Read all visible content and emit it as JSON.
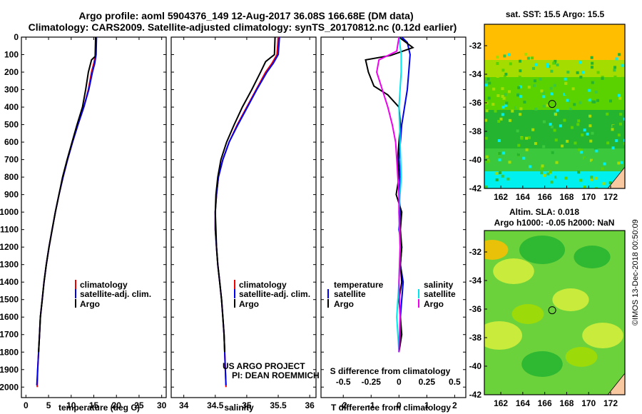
{
  "title": {
    "line1": "Argo profile: aoml 5904376_149 12-Aug-2017 36.08S 166.68E (DM data)",
    "line2": "Climatology: CARS2009. Satellite-adjusted climatology: synTS_20170812.nc (0.12d earlier)"
  },
  "credit": "©IMOS 13-Dec-2018 00:50:09",
  "project": {
    "line1": "US ARGO PROJECT",
    "line2": "PI: DEAN ROEMMICH"
  },
  "colors": {
    "climatology": "#ee0000",
    "satellite": "#0000ee",
    "argo": "#000000",
    "satellite_s": "#00e5ee",
    "argo_s": "#ee00ee"
  },
  "chart_data": [
    {
      "type": "line",
      "id": "temperature",
      "xlabel": "temperature (deg C)",
      "ylabel": "",
      "xlim": [
        -1,
        31
      ],
      "ylim": [
        2060,
        0
      ],
      "xticks": [
        0,
        5,
        10,
        15,
        20,
        25,
        30
      ],
      "xtick_labels": [
        "0",
        "5",
        "10",
        "15",
        "20",
        "25",
        "30"
      ],
      "yticks": [
        0,
        100,
        200,
        300,
        400,
        500,
        600,
        700,
        800,
        900,
        1000,
        1100,
        1200,
        1300,
        1400,
        1500,
        1600,
        1700,
        1800,
        1900,
        2000
      ],
      "ytick_labels": [
        "0",
        "100",
        "200",
        "300",
        "400",
        "500",
        "600",
        "700",
        "800",
        "900",
        "1000",
        "1100",
        "1200",
        "1300",
        "1400",
        "1500",
        "1600",
        "1700",
        "1800",
        "1900",
        "2000"
      ],
      "legend": [
        "climatology",
        "satellite-adj. clim.",
        "Argo"
      ],
      "series": [
        {
          "name": "climatology",
          "color": "#ee0000",
          "points": [
            [
              15.5,
              0
            ],
            [
              15.4,
              100
            ],
            [
              15,
              150
            ],
            [
              14.5,
              200
            ],
            [
              13.8,
              300
            ],
            [
              12.8,
              400
            ],
            [
              11.5,
              500
            ],
            [
              10.3,
              600
            ],
            [
              9.2,
              700
            ],
            [
              8.2,
              800
            ],
            [
              7.3,
              900
            ],
            [
              6.5,
              1000
            ],
            [
              5.8,
              1100
            ],
            [
              5.1,
              1200
            ],
            [
              4.5,
              1300
            ],
            [
              4,
              1400
            ],
            [
              3.6,
              1500
            ],
            [
              3.2,
              1600
            ],
            [
              3,
              1700
            ],
            [
              2.8,
              1800
            ],
            [
              2.6,
              1900
            ],
            [
              2.5,
              2000
            ]
          ]
        },
        {
          "name": "satellite-adj. clim.",
          "color": "#0000ee",
          "points": [
            [
              15.6,
              0
            ],
            [
              15.5,
              100
            ],
            [
              15.2,
              150
            ],
            [
              14.7,
              200
            ],
            [
              13.9,
              300
            ],
            [
              12.8,
              400
            ],
            [
              11.5,
              500
            ],
            [
              10.3,
              600
            ],
            [
              9.2,
              700
            ],
            [
              8.2,
              800
            ],
            [
              7.3,
              900
            ],
            [
              6.5,
              1000
            ],
            [
              5.8,
              1100
            ],
            [
              5.1,
              1200
            ],
            [
              4.5,
              1300
            ],
            [
              4,
              1400
            ],
            [
              3.6,
              1500
            ],
            [
              3.2,
              1600
            ],
            [
              3,
              1700
            ],
            [
              2.8,
              1800
            ],
            [
              2.6,
              1900
            ],
            [
              2.4,
              1990
            ]
          ]
        },
        {
          "name": "Argo",
          "color": "#000000",
          "points": [
            [
              15.4,
              0
            ],
            [
              15.3,
              110
            ],
            [
              14.5,
              130
            ],
            [
              13.8,
              200
            ],
            [
              13.2,
              300
            ],
            [
              12.5,
              400
            ],
            [
              11.3,
              500
            ],
            [
              10.2,
              600
            ],
            [
              9.1,
              700
            ],
            [
              8.1,
              800
            ],
            [
              7.3,
              900
            ],
            [
              6.5,
              1000
            ],
            [
              5.8,
              1100
            ],
            [
              5.1,
              1200
            ],
            [
              4.5,
              1300
            ],
            [
              4,
              1400
            ],
            [
              3.6,
              1500
            ],
            [
              3.2,
              1600
            ],
            [
              3,
              1700
            ],
            [
              2.8,
              1800
            ]
          ]
        }
      ]
    },
    {
      "type": "line",
      "id": "salinity",
      "xlabel": "salinity",
      "xlim": [
        33.8,
        36.1
      ],
      "ylim": [
        2060,
        0
      ],
      "xticks": [
        34,
        34.5,
        35,
        35.5,
        36
      ],
      "xtick_labels": [
        "34",
        "34.5",
        "35",
        "35.5",
        "36"
      ],
      "legend": [
        "climatology",
        "satellite-adj. clim.",
        "Argo"
      ],
      "series": [
        {
          "name": "climatology",
          "color": "#ee0000",
          "points": [
            [
              35.5,
              0
            ],
            [
              35.48,
              100
            ],
            [
              35.4,
              150
            ],
            [
              35.3,
              200
            ],
            [
              35.15,
              300
            ],
            [
              35,
              400
            ],
            [
              34.85,
              500
            ],
            [
              34.72,
              600
            ],
            [
              34.62,
              700
            ],
            [
              34.55,
              800
            ],
            [
              34.52,
              900
            ],
            [
              34.5,
              1000
            ],
            [
              34.5,
              1100
            ],
            [
              34.52,
              1200
            ],
            [
              34.54,
              1300
            ],
            [
              34.57,
              1400
            ],
            [
              34.6,
              1500
            ],
            [
              34.62,
              1600
            ],
            [
              34.64,
              1700
            ],
            [
              34.65,
              1800
            ],
            [
              34.66,
              1900
            ],
            [
              34.67,
              2000
            ]
          ]
        },
        {
          "name": "satellite-adj. clim.",
          "color": "#0000ee",
          "points": [
            [
              35.52,
              0
            ],
            [
              35.5,
              100
            ],
            [
              35.42,
              150
            ],
            [
              35.32,
              200
            ],
            [
              35.16,
              300
            ],
            [
              35.01,
              400
            ],
            [
              34.86,
              500
            ],
            [
              34.72,
              600
            ],
            [
              34.62,
              700
            ],
            [
              34.55,
              800
            ],
            [
              34.52,
              900
            ],
            [
              34.5,
              1000
            ],
            [
              34.5,
              1100
            ],
            [
              34.52,
              1200
            ],
            [
              34.54,
              1300
            ],
            [
              34.57,
              1400
            ],
            [
              34.6,
              1500
            ],
            [
              34.62,
              1600
            ],
            [
              34.64,
              1700
            ],
            [
              34.65,
              1800
            ],
            [
              34.66,
              1900
            ],
            [
              34.67,
              1990
            ]
          ]
        },
        {
          "name": "Argo",
          "color": "#000000",
          "points": [
            [
              35.45,
              0
            ],
            [
              35.44,
              100
            ],
            [
              35.3,
              140
            ],
            [
              35.22,
              200
            ],
            [
              35.08,
              300
            ],
            [
              34.93,
              400
            ],
            [
              34.8,
              500
            ],
            [
              34.68,
              600
            ],
            [
              34.59,
              700
            ],
            [
              34.54,
              800
            ],
            [
              34.51,
              900
            ],
            [
              34.5,
              1000
            ],
            [
              34.51,
              1100
            ],
            [
              34.52,
              1200
            ],
            [
              34.54,
              1300
            ],
            [
              34.57,
              1400
            ],
            [
              34.6,
              1500
            ],
            [
              34.62,
              1600
            ],
            [
              34.64,
              1700
            ],
            [
              34.65,
              1800
            ]
          ]
        }
      ]
    },
    {
      "type": "line",
      "id": "difference",
      "xlabel": "T difference from climatology",
      "xlabel_top": "S difference from climatology",
      "xlim": [
        -2.8,
        2.4
      ],
      "ylim": [
        2060,
        0
      ],
      "xticks": [
        -2,
        -1,
        0,
        1,
        2
      ],
      "xtick_labels": [
        "-2",
        "-1",
        "0",
        "1",
        "2"
      ],
      "s_ticks": [
        -0.5,
        -0.25,
        0,
        0.25,
        0.5
      ],
      "s_tick_labels": [
        "-0.5",
        "-0.25",
        "0",
        "0.25",
        "0.5"
      ],
      "legend_left_title": "temperature",
      "legend_right_title": "salinity",
      "legend_left": [
        "satellite",
        "Argo"
      ],
      "legend_right": [
        "satellite",
        "Argo"
      ],
      "series": [
        {
          "name": "temperature satellite",
          "color": "#0000ee",
          "points": [
            [
              0.1,
              0
            ],
            [
              0.3,
              30
            ],
            [
              0.4,
              100
            ],
            [
              0.35,
              200
            ],
            [
              0.3,
              300
            ],
            [
              0.2,
              400
            ],
            [
              0.1,
              500
            ],
            [
              0.05,
              600
            ],
            [
              0,
              700
            ],
            [
              0.05,
              800
            ],
            [
              0,
              900
            ],
            [
              0.05,
              1000
            ],
            [
              0,
              1100
            ],
            [
              0.1,
              1200
            ],
            [
              0.05,
              1300
            ],
            [
              0.15,
              1400
            ],
            [
              0.1,
              1500
            ],
            [
              0.05,
              1600
            ],
            [
              0.05,
              1700
            ],
            [
              0,
              1800
            ]
          ]
        },
        {
          "name": "temperature Argo",
          "color": "#000000",
          "points": [
            [
              0,
              0
            ],
            [
              0.5,
              60
            ],
            [
              -0.3,
              105
            ],
            [
              -1.2,
              130
            ],
            [
              -1.1,
              200
            ],
            [
              -0.9,
              280
            ],
            [
              -0.4,
              330
            ],
            [
              0,
              400
            ],
            [
              0.05,
              500
            ],
            [
              0,
              600
            ],
            [
              -0.05,
              700
            ],
            [
              0,
              800
            ],
            [
              -0.1,
              900
            ],
            [
              0.1,
              1000
            ],
            [
              0.05,
              1100
            ],
            [
              0.1,
              1200
            ],
            [
              0.05,
              1300
            ],
            [
              0.1,
              1400
            ],
            [
              0,
              1500
            ],
            [
              0.05,
              1600
            ],
            [
              0.1,
              1700
            ],
            [
              0,
              1800
            ]
          ]
        },
        {
          "name": "salinity satellite",
          "color": "#00e5ee",
          "points": [
            [
              0,
              0
            ],
            [
              0.02,
              100
            ],
            [
              0.02,
              200
            ],
            [
              0,
              400
            ],
            [
              0.01,
              600
            ],
            [
              0.02,
              800
            ],
            [
              0,
              1000
            ],
            [
              0.01,
              1200
            ],
            [
              0,
              1400
            ],
            [
              -0.02,
              1600
            ],
            [
              0,
              1800
            ]
          ]
        },
        {
          "name": "salinity Argo",
          "color": "#ee00ee",
          "points": [
            [
              0,
              0
            ],
            [
              -0.02,
              80
            ],
            [
              -0.18,
              130
            ],
            [
              -0.2,
              200
            ],
            [
              -0.15,
              300
            ],
            [
              -0.1,
              400
            ],
            [
              -0.06,
              500
            ],
            [
              -0.03,
              600
            ],
            [
              -0.02,
              700
            ],
            [
              -0.01,
              800
            ],
            [
              0,
              900
            ],
            [
              0,
              1000
            ],
            [
              0.01,
              1200
            ],
            [
              0,
              1400
            ],
            [
              0.01,
              1600
            ],
            [
              0,
              1800
            ]
          ]
        }
      ]
    },
    {
      "type": "heatmap",
      "id": "sst_map",
      "title": "sat. SST: 15.5 Argo: 15.5",
      "xlim": [
        160.5,
        173.3
      ],
      "ylim": [
        -42,
        -30.5
      ],
      "xticks": [
        162,
        164,
        166,
        168,
        170,
        172
      ],
      "xtick_labels": [
        "162",
        "164",
        "166",
        "168",
        "170",
        "172"
      ],
      "yticks": [
        -32,
        -34,
        -36,
        -38,
        -40,
        -42
      ],
      "ytick_labels": [
        "-32",
        "-34",
        "-36",
        "-38",
        "-40",
        "-42"
      ],
      "profile_location": [
        166.68,
        -36.08
      ],
      "bands": [
        {
          "from": -30.5,
          "to": -33,
          "color": "#ffbe00"
        },
        {
          "from": -33,
          "to": -34.2,
          "color": "#a4dc00"
        },
        {
          "from": -34.2,
          "to": -36.5,
          "color": "#5ad200"
        },
        {
          "from": -36.5,
          "to": -39.2,
          "color": "#24b430"
        },
        {
          "from": -39.2,
          "to": -40.8,
          "color": "#3cc83c"
        },
        {
          "from": -40.8,
          "to": -42,
          "color": "#00f0f0"
        }
      ]
    },
    {
      "type": "heatmap",
      "id": "sla_map",
      "title": "Altim. SLA: 0.018",
      "subtitle": "Argo h1000: -0.05 h2000: NaN",
      "xlim": [
        160.5,
        173.3
      ],
      "ylim": [
        -42,
        -30.5
      ],
      "xticks": [
        162,
        164,
        166,
        168,
        170,
        172
      ],
      "xtick_labels": [
        "162",
        "164",
        "166",
        "168",
        "170",
        "172"
      ],
      "yticks": [
        -32,
        -34,
        -36,
        -38,
        -40,
        -42
      ],
      "ytick_labels": [
        "-32",
        "-34",
        "-36",
        "-38",
        "-40",
        "-42"
      ],
      "profile_location": [
        166.68,
        -36.08
      ],
      "base_color": "#6cd23c"
    }
  ]
}
